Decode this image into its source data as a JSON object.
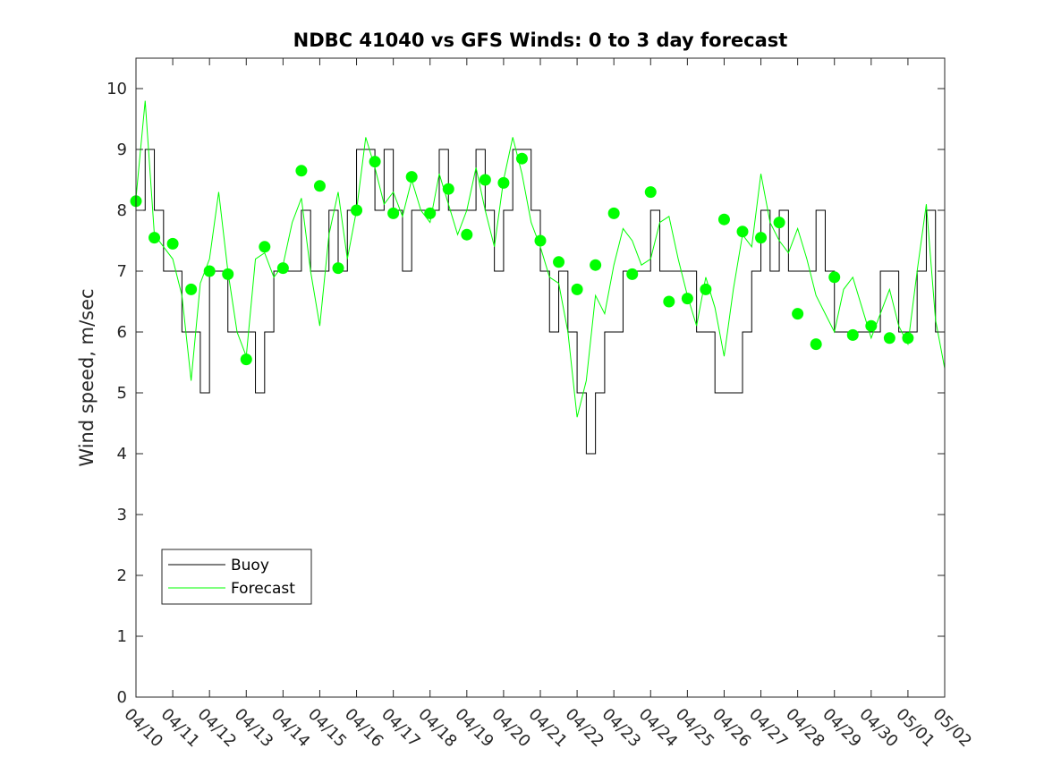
{
  "chart_data": {
    "type": "line",
    "title": "NDBC 41040 vs GFS Winds: 0 to 3 day forecast",
    "xlabel": "",
    "ylabel": "Wind speed, m/sec",
    "ylim": [
      0,
      10.5
    ],
    "yticks": [
      0,
      1,
      2,
      3,
      4,
      5,
      6,
      7,
      8,
      9,
      10
    ],
    "xlim": [
      "04/10",
      "05/02"
    ],
    "xtick_labels": [
      "04/10",
      "04/11",
      "04/12",
      "04/13",
      "04/14",
      "04/15",
      "04/16",
      "04/17",
      "04/18",
      "04/19",
      "04/20",
      "04/21",
      "04/22",
      "04/23",
      "04/24",
      "04/25",
      "04/26",
      "04/27",
      "04/28",
      "04/29",
      "04/30",
      "05/01",
      "05/02"
    ],
    "grid": false,
    "legend_position": "lower-left",
    "series": [
      {
        "name": "Buoy",
        "color": "#000000",
        "style": "step",
        "x": [
          "04/10",
          "04/10 06:00",
          "04/10 12:00",
          "04/10 18:00",
          "04/11",
          "04/11 06:00",
          "04/11 12:00",
          "04/11 18:00",
          "04/12",
          "04/12 06:00",
          "04/12 12:00",
          "04/12 18:00",
          "04/13",
          "04/13 06:00",
          "04/13 12:00",
          "04/13 18:00",
          "04/14",
          "04/14 06:00",
          "04/14 12:00",
          "04/14 18:00",
          "04/15",
          "04/15 06:00",
          "04/15 12:00",
          "04/15 18:00",
          "04/16",
          "04/16 06:00",
          "04/16 12:00",
          "04/16 18:00",
          "04/17",
          "04/17 06:00",
          "04/17 12:00",
          "04/17 18:00",
          "04/18",
          "04/18 06:00",
          "04/18 12:00",
          "04/18 18:00",
          "04/19",
          "04/19 06:00",
          "04/19 12:00",
          "04/19 18:00",
          "04/20",
          "04/20 06:00",
          "04/20 12:00",
          "04/20 18:00",
          "04/21",
          "04/21 06:00",
          "04/21 12:00",
          "04/21 18:00",
          "04/22",
          "04/22 06:00",
          "04/22 12:00",
          "04/22 18:00",
          "04/23",
          "04/23 06:00",
          "04/23 12:00",
          "04/23 18:00",
          "04/24",
          "04/24 06:00",
          "04/24 12:00",
          "04/24 18:00",
          "04/25",
          "04/25 06:00",
          "04/25 12:00",
          "04/25 18:00",
          "04/26",
          "04/26 06:00",
          "04/26 12:00",
          "04/26 18:00",
          "04/27",
          "04/27 06:00",
          "04/27 12:00",
          "04/27 18:00",
          "04/28",
          "04/28 06:00",
          "04/28 12:00",
          "04/28 18:00",
          "04/29",
          "04/29 06:00",
          "04/29 12:00",
          "04/29 18:00",
          "04/30",
          "04/30 06:00",
          "04/30 12:00",
          "04/30 18:00",
          "05/01",
          "05/01 06:00",
          "05/01 12:00",
          "05/01 18:00"
        ],
        "values": [
          8,
          9,
          8,
          7,
          7,
          6,
          6,
          5,
          7,
          7,
          6,
          6,
          6,
          5,
          6,
          7,
          7,
          7,
          8,
          7,
          7,
          8,
          7,
          8,
          9,
          9,
          8,
          9,
          8,
          7,
          8,
          8,
          8,
          9,
          8,
          8,
          8,
          9,
          8,
          7,
          8,
          9,
          9,
          8,
          7,
          6,
          7,
          6,
          5,
          4,
          5,
          6,
          6,
          7,
          7,
          7,
          8,
          7,
          7,
          7,
          7,
          6,
          6,
          5,
          5,
          5,
          6,
          7,
          8,
          7,
          8,
          7,
          7,
          7,
          8,
          7,
          6,
          6,
          6,
          6,
          6,
          7,
          7,
          6,
          6,
          7,
          8,
          6
        ]
      },
      {
        "name": "Forecast",
        "color": "#00ff00",
        "style": "line",
        "x": [
          "04/10",
          "04/10 06:00",
          "04/10 12:00",
          "04/10 18:00",
          "04/11",
          "04/11 06:00",
          "04/11 12:00",
          "04/11 18:00",
          "04/12",
          "04/12 06:00",
          "04/12 12:00",
          "04/12 18:00",
          "04/13",
          "04/13 06:00",
          "04/13 12:00",
          "04/13 18:00",
          "04/14",
          "04/14 06:00",
          "04/14 12:00",
          "04/14 18:00",
          "04/15",
          "04/15 06:00",
          "04/15 12:00",
          "04/15 18:00",
          "04/16",
          "04/16 06:00",
          "04/16 12:00",
          "04/16 18:00",
          "04/17",
          "04/17 06:00",
          "04/17 12:00",
          "04/17 18:00",
          "04/18",
          "04/18 06:00",
          "04/18 12:00",
          "04/18 18:00",
          "04/19",
          "04/19 06:00",
          "04/19 12:00",
          "04/19 18:00",
          "04/20",
          "04/20 06:00",
          "04/20 12:00",
          "04/20 18:00",
          "04/21",
          "04/21 06:00",
          "04/21 12:00",
          "04/21 18:00",
          "04/22",
          "04/22 06:00",
          "04/22 12:00",
          "04/22 18:00",
          "04/23",
          "04/23 06:00",
          "04/23 12:00",
          "04/23 18:00",
          "04/24",
          "04/24 06:00",
          "04/24 12:00",
          "04/24 18:00",
          "04/25",
          "04/25 06:00",
          "04/25 12:00",
          "04/25 18:00",
          "04/26",
          "04/26 06:00",
          "04/26 12:00",
          "04/26 18:00",
          "04/27",
          "04/27 06:00",
          "04/27 12:00",
          "04/27 18:00",
          "04/28",
          "04/28 06:00",
          "04/28 12:00",
          "04/28 18:00",
          "04/29",
          "04/29 06:00",
          "04/29 12:00",
          "04/29 18:00",
          "04/30",
          "04/30 06:00",
          "04/30 12:00",
          "04/30 18:00",
          "05/01",
          "05/01 06:00",
          "05/01 12:00",
          "05/01 18:00",
          "05/02"
        ],
        "values": [
          8.2,
          9.8,
          7.6,
          7.4,
          7.2,
          6.6,
          5.2,
          6.8,
          7.2,
          8.3,
          7.0,
          6.0,
          5.6,
          7.2,
          7.3,
          6.9,
          7.1,
          7.8,
          8.2,
          7.0,
          6.1,
          7.6,
          8.3,
          7.2,
          8.0,
          9.2,
          8.7,
          8.1,
          8.3,
          7.9,
          8.5,
          8.0,
          7.8,
          8.6,
          8.1,
          7.6,
          8.0,
          8.7,
          8.0,
          7.4,
          8.5,
          9.2,
          8.6,
          7.8,
          7.4,
          6.9,
          6.8,
          6.0,
          4.6,
          5.2,
          6.6,
          6.3,
          7.1,
          7.7,
          7.5,
          7.1,
          7.2,
          7.8,
          7.9,
          7.2,
          6.6,
          6.1,
          6.9,
          6.4,
          5.6,
          6.7,
          7.6,
          7.4,
          8.6,
          7.8,
          7.5,
          7.3,
          7.7,
          7.2,
          6.6,
          6.3,
          6.0,
          6.7,
          6.9,
          6.4,
          5.9,
          6.3,
          6.7,
          6.1,
          5.8,
          7.0,
          8.1,
          6.2,
          5.4
        ]
      }
    ],
    "markers": {
      "x": [
        "04/10",
        "04/10 12:00",
        "04/11",
        "04/11 12:00",
        "04/12",
        "04/12 12:00",
        "04/13",
        "04/13 12:00",
        "04/14",
        "04/14 12:00",
        "04/15",
        "04/15 12:00",
        "04/16",
        "04/16 12:00",
        "04/17",
        "04/17 12:00",
        "04/18",
        "04/18 12:00",
        "04/19",
        "04/19 12:00",
        "04/20",
        "04/20 12:00",
        "04/21",
        "04/21 12:00",
        "04/22",
        "04/22 12:00",
        "04/23",
        "04/23 12:00",
        "04/24",
        "04/24 12:00",
        "04/25",
        "04/25 12:00",
        "04/26",
        "04/26 12:00",
        "04/27",
        "04/27 12:00",
        "04/28",
        "04/28 12:00",
        "04/29",
        "04/29 12:00",
        "04/30",
        "04/30 12:00",
        "05/01"
      ],
      "values": [
        8.15,
        7.55,
        7.45,
        6.7,
        7.0,
        6.95,
        5.55,
        7.4,
        7.05,
        8.65,
        8.4,
        7.05,
        8.0,
        8.8,
        7.95,
        8.55,
        7.95,
        8.35,
        7.6,
        8.5,
        8.45,
        8.85,
        7.5,
        7.15,
        6.7,
        7.1,
        7.95,
        6.95,
        8.3,
        6.5,
        6.55,
        6.7,
        7.85,
        7.65,
        7.55,
        7.8,
        6.3,
        5.8,
        6.9,
        5.95,
        6.1,
        5.9,
        5.9
      ]
    }
  }
}
